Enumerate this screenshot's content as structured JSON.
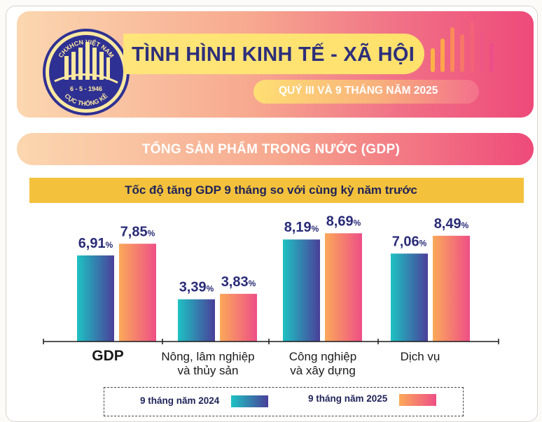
{
  "header": {
    "title": "TÌNH HÌNH KINH TẾ - XÃ HỘI",
    "subtitle": "QUÝ III VÀ 9 THÁNG NĂM 2025",
    "logo": {
      "top_text": "CHXHCN VIỆT NAM",
      "date_text": "6 - 5 - 1946",
      "bottom_text": "CỤC THỐNG KÊ"
    }
  },
  "section": {
    "title": "TỔNG SẢN PHẨM TRONG NƯỚC (GDP)"
  },
  "colors": {
    "series_2024_gradient": [
      "#1ec2c2",
      "#4a3f9a"
    ],
    "series_2025_gradient": [
      "#fba95a",
      "#ee4f86"
    ],
    "value_label": "#2a2c78",
    "subhead_bg": "#f3c13c"
  },
  "chart_data": {
    "type": "bar",
    "title": "Tốc độ tăng GDP 9 tháng so với cùng kỳ năm trước",
    "categories": [
      "GDP",
      "Nông, lâm nghiệp\nvà thủy sản",
      "Công nghiệp\nvà xây dựng",
      "Dịch vụ"
    ],
    "series": [
      {
        "name": "9 tháng năm 2024",
        "values": [
          6.91,
          3.39,
          8.19,
          7.06
        ],
        "labels": [
          "6,91",
          "3,39",
          "8,19",
          "7,06"
        ]
      },
      {
        "name": "9 tháng năm 2025",
        "values": [
          7.85,
          3.83,
          8.69,
          8.49
        ],
        "labels": [
          "7,85",
          "3,83",
          "8,69",
          "8,49"
        ]
      }
    ],
    "unit": "%",
    "xlabel": "",
    "ylabel": "",
    "ylim": [
      0,
      10
    ],
    "legend_position": "bottom",
    "grid": false
  }
}
